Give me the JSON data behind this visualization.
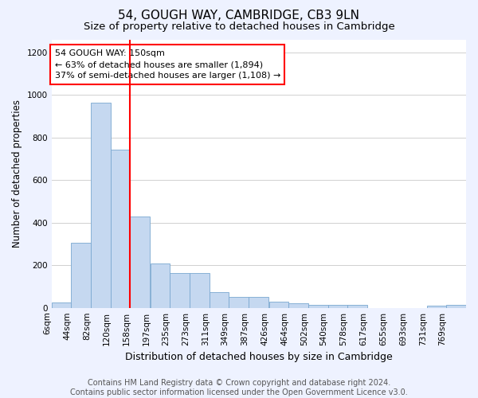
{
  "title": "54, GOUGH WAY, CAMBRIDGE, CB3 9LN",
  "subtitle": "Size of property relative to detached houses in Cambridge",
  "xlabel": "Distribution of detached houses by size in Cambridge",
  "ylabel": "Number of detached properties",
  "footer_line1": "Contains HM Land Registry data © Crown copyright and database right 2024.",
  "footer_line2": "Contains public sector information licensed under the Open Government Licence v3.0.",
  "annotation_line1": "54 GOUGH WAY: 150sqm",
  "annotation_line2": "← 63% of detached houses are smaller (1,894)",
  "annotation_line3": "37% of semi-detached houses are larger (1,108) →",
  "bar_color": "#c5d8f0",
  "bar_edge_color": "#7aa8d0",
  "redline_x": 158,
  "categories": [
    "6sqm",
    "44sqm",
    "82sqm",
    "120sqm",
    "158sqm",
    "197sqm",
    "235sqm",
    "273sqm",
    "311sqm",
    "349sqm",
    "387sqm",
    "426sqm",
    "464sqm",
    "502sqm",
    "540sqm",
    "578sqm",
    "617sqm",
    "655sqm",
    "693sqm",
    "731sqm",
    "769sqm"
  ],
  "bin_starts": [
    6,
    44,
    82,
    120,
    158,
    197,
    235,
    273,
    311,
    349,
    387,
    426,
    464,
    502,
    540,
    578,
    617,
    655,
    693,
    731,
    769
  ],
  "bin_width": 38,
  "values": [
    25,
    305,
    965,
    745,
    430,
    210,
    165,
    165,
    75,
    50,
    50,
    30,
    20,
    15,
    15,
    15,
    0,
    0,
    0,
    10,
    15
  ],
  "ylim": [
    0,
    1260
  ],
  "yticks": [
    0,
    200,
    400,
    600,
    800,
    1000,
    1200
  ],
  "bg_color": "#eef2ff",
  "plot_bg_color": "#ffffff",
  "grid_color": "#d0d0d0",
  "title_fontsize": 11,
  "subtitle_fontsize": 9.5,
  "axis_label_fontsize": 8.5,
  "tick_fontsize": 7.5,
  "annotation_fontsize": 8,
  "footer_fontsize": 7
}
